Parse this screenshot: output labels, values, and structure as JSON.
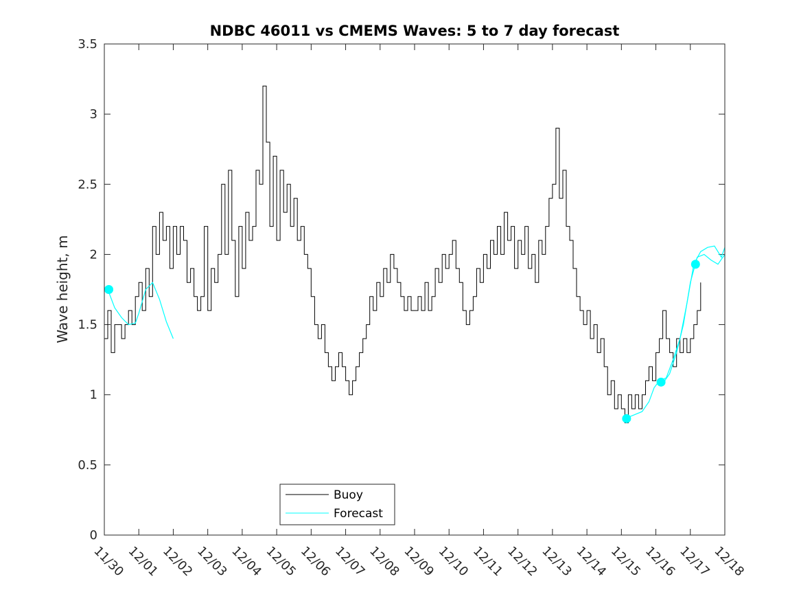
{
  "chart_data": {
    "type": "line",
    "title": "NDBC 46011 vs CMEMS Waves: 5 to 7 day forecast",
    "xlabel": "",
    "ylabel": "Wave height, m",
    "ylim": [
      0,
      3.5
    ],
    "xlim": [
      0,
      18
    ],
    "yticks": [
      0,
      0.5,
      1,
      1.5,
      2,
      2.5,
      3,
      3.5
    ],
    "ytick_labels": [
      "0",
      "0.5",
      "1",
      "1.5",
      "2",
      "2.5",
      "3",
      "3.5"
    ],
    "xticks": [
      0,
      1,
      2,
      3,
      4,
      5,
      6,
      7,
      8,
      9,
      10,
      11,
      12,
      13,
      14,
      15,
      16,
      17,
      18
    ],
    "xtick_labels": [
      "11/30",
      "12/01",
      "12/02",
      "12/03",
      "12/04",
      "12/05",
      "12/06",
      "12/07",
      "12/08",
      "12/09",
      "12/10",
      "12/11",
      "12/12",
      "12/13",
      "12/14",
      "12/15",
      "12/16",
      "12/17",
      "12/18"
    ],
    "legend": {
      "position": "bottom-center",
      "entries": [
        "Buoy",
        "Forecast"
      ]
    },
    "series": [
      {
        "name": "Buoy",
        "color": "#000000",
        "x": [
          0,
          0.1,
          0.2,
          0.3,
          0.4,
          0.5,
          0.6,
          0.7,
          0.8,
          0.9,
          1.0,
          1.1,
          1.2,
          1.3,
          1.4,
          1.5,
          1.6,
          1.7,
          1.8,
          1.9,
          2.0,
          2.1,
          2.2,
          2.3,
          2.4,
          2.5,
          2.6,
          2.7,
          2.8,
          2.9,
          3.0,
          3.1,
          3.2,
          3.3,
          3.4,
          3.5,
          3.6,
          3.7,
          3.8,
          3.9,
          4.0,
          4.1,
          4.2,
          4.3,
          4.4,
          4.5,
          4.6,
          4.7,
          4.8,
          4.9,
          5.0,
          5.1,
          5.2,
          5.3,
          5.4,
          5.5,
          5.6,
          5.7,
          5.8,
          5.9,
          6.0,
          6.1,
          6.2,
          6.3,
          6.4,
          6.5,
          6.6,
          6.7,
          6.8,
          6.9,
          7.0,
          7.1,
          7.2,
          7.3,
          7.4,
          7.5,
          7.6,
          7.7,
          7.8,
          7.9,
          8.0,
          8.1,
          8.2,
          8.3,
          8.4,
          8.5,
          8.6,
          8.7,
          8.8,
          8.9,
          9.0,
          9.1,
          9.2,
          9.3,
          9.4,
          9.5,
          9.6,
          9.7,
          9.8,
          9.9,
          10.0,
          10.1,
          10.2,
          10.3,
          10.4,
          10.5,
          10.6,
          10.7,
          10.8,
          10.9,
          11.0,
          11.1,
          11.2,
          11.3,
          11.4,
          11.5,
          11.6,
          11.7,
          11.8,
          11.9,
          12.0,
          12.1,
          12.2,
          12.3,
          12.4,
          12.5,
          12.6,
          12.7,
          12.8,
          12.9,
          13.0,
          13.1,
          13.2,
          13.3,
          13.4,
          13.5,
          13.6,
          13.7,
          13.8,
          13.9,
          14.0,
          14.1,
          14.2,
          14.3,
          14.4,
          14.5,
          14.6,
          14.7,
          14.8,
          14.9,
          15.0,
          15.1,
          15.2,
          15.3,
          15.4,
          15.5,
          15.6,
          15.7,
          15.8,
          15.9,
          16.0,
          16.1,
          16.2,
          16.3,
          16.4,
          16.5,
          16.6,
          16.7,
          16.8,
          16.9,
          17.0,
          17.1,
          17.2,
          17.3
        ],
        "values": [
          1.4,
          1.6,
          1.3,
          1.5,
          1.5,
          1.4,
          1.5,
          1.6,
          1.5,
          1.7,
          1.8,
          1.6,
          1.9,
          1.7,
          2.2,
          2.0,
          2.3,
          2.1,
          2.2,
          1.9,
          2.2,
          2.0,
          2.2,
          2.1,
          1.8,
          1.9,
          1.7,
          1.6,
          1.7,
          2.2,
          1.6,
          1.9,
          1.8,
          2.0,
          2.5,
          2.0,
          2.6,
          2.1,
          1.7,
          2.2,
          1.9,
          2.3,
          2.1,
          2.2,
          2.6,
          2.5,
          3.2,
          2.8,
          2.2,
          2.7,
          2.1,
          2.6,
          2.3,
          2.5,
          2.2,
          2.4,
          2.1,
          2.2,
          2.0,
          1.9,
          1.7,
          1.5,
          1.4,
          1.5,
          1.3,
          1.2,
          1.1,
          1.2,
          1.3,
          1.2,
          1.1,
          1.0,
          1.1,
          1.2,
          1.3,
          1.4,
          1.5,
          1.7,
          1.6,
          1.8,
          1.7,
          1.9,
          1.8,
          2.0,
          1.9,
          1.8,
          1.7,
          1.6,
          1.7,
          1.6,
          1.6,
          1.7,
          1.6,
          1.8,
          1.6,
          1.7,
          1.9,
          1.8,
          2.0,
          1.9,
          2.0,
          2.1,
          1.9,
          1.8,
          1.6,
          1.5,
          1.6,
          1.7,
          1.9,
          1.8,
          2.0,
          1.9,
          2.1,
          2.0,
          2.2,
          2.0,
          2.3,
          2.1,
          2.2,
          1.9,
          2.1,
          2.0,
          2.2,
          1.9,
          2.0,
          1.8,
          2.1,
          2.0,
          2.2,
          2.4,
          2.5,
          2.9,
          2.4,
          2.6,
          2.2,
          2.1,
          1.9,
          1.7,
          1.6,
          1.5,
          1.6,
          1.4,
          1.5,
          1.3,
          1.4,
          1.2,
          1.0,
          1.1,
          0.9,
          1.0,
          0.9,
          0.8,
          1.0,
          0.9,
          1.0,
          0.9,
          1.0,
          1.1,
          1.2,
          1.1,
          1.3,
          1.4,
          1.6,
          1.4,
          1.3,
          1.2,
          1.4,
          1.3,
          1.4,
          1.3,
          1.4,
          1.5,
          1.6,
          1.8
        ]
      },
      {
        "name": "Forecast",
        "color": "#00ffff",
        "segments": [
          {
            "x": [
              0.1,
              0.3,
              0.5,
              0.7,
              0.9,
              1.0,
              1.2,
              1.4,
              1.6,
              1.8,
              2.0
            ],
            "values": [
              1.75,
              1.62,
              1.55,
              1.5,
              1.51,
              1.58,
              1.75,
              1.8,
              1.68,
              1.52,
              1.4
            ]
          },
          {
            "x": [
              15.1,
              15.3,
              15.6,
              15.8,
              15.95,
              16.1,
              16.3,
              16.5,
              16.7,
              16.9,
              17.1,
              17.3,
              17.5,
              17.7,
              17.9,
              18.0
            ],
            "values": [
              0.83,
              0.85,
              0.88,
              0.95,
              1.05,
              1.1,
              1.12,
              1.25,
              1.4,
              1.65,
              1.93,
              2.02,
              2.05,
              2.06,
              1.98,
              2.05
            ]
          },
          {
            "x": [
              16.2,
              16.4,
              16.6,
              16.8,
              17.0,
              17.2,
              17.4,
              17.6,
              17.8,
              18.0
            ],
            "values": [
              1.08,
              1.15,
              1.3,
              1.5,
              1.8,
              1.98,
              2.0,
              1.96,
              1.93,
              2.0
            ]
          }
        ],
        "markers": {
          "x": [
            0.13,
            15.15,
            16.15,
            17.15
          ],
          "values": [
            1.75,
            0.83,
            1.09,
            1.93
          ]
        }
      }
    ]
  }
}
